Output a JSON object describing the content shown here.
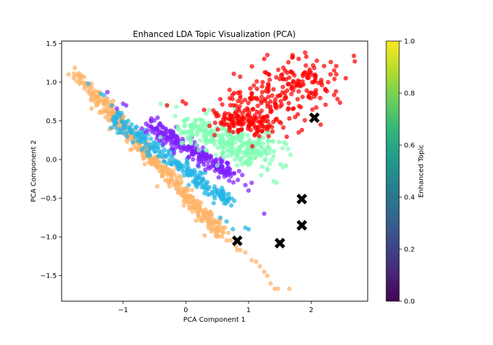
{
  "chart_data": {
    "type": "scatter",
    "title": "Enhanced LDA Topic Visualization (PCA)",
    "xlabel": "PCA Component 1",
    "ylabel": "PCA Component 2",
    "xlim": [
      -1.98,
      2.9
    ],
    "ylim": [
      -1.83,
      1.53
    ],
    "xticks": [
      -1,
      0,
      1,
      2
    ],
    "xtick_labels": [
      "−1",
      "0",
      "1",
      "2"
    ],
    "yticks": [
      -1.5,
      -1.0,
      -0.5,
      0.0,
      0.5,
      1.0,
      1.5
    ],
    "ytick_labels": [
      "−1.5",
      "−1.0",
      "−0.5",
      "0.0",
      "0.5",
      "1.0",
      "1.5"
    ],
    "grid": false,
    "colorbar": {
      "label": "Enhanced Topic",
      "range": [
        0.0,
        1.0
      ],
      "ticks": [
        0.0,
        0.2,
        0.4,
        0.6,
        0.8,
        1.0
      ],
      "tick_labels": [
        "0.0",
        "0.2",
        "0.4",
        "0.6",
        "0.8",
        "1.0"
      ],
      "colormap": "viridis",
      "colormap_stops": [
        "#440154",
        "#482878",
        "#3e4989",
        "#31688e",
        "#26828e",
        "#1f9e89",
        "#35b779",
        "#6ece58",
        "#b5de2b",
        "#fde725"
      ]
    },
    "series": [
      {
        "color": "#ffb366",
        "clusters": [
          {
            "from": [
              -1.75,
              1.1
            ],
            "to": [
              0.55,
              -0.95
            ],
            "count": 400,
            "spread": [
              0.06,
              0.05
            ]
          },
          {
            "from": [
              -1.0,
              0.35
            ],
            "to": [
              0.85,
              -1.15
            ],
            "count": 40,
            "spread": [
              0.05,
              0.04
            ]
          }
        ],
        "points": [
          [
            -1.78,
            1.11
          ],
          [
            -1.62,
            0.99
          ],
          [
            -1.58,
            0.98
          ],
          [
            1.05,
            -1.3
          ],
          [
            1.12,
            -1.32
          ],
          [
            1.18,
            -1.38
          ],
          [
            1.25,
            -1.45
          ],
          [
            1.3,
            -1.5
          ],
          [
            1.35,
            -1.6
          ],
          [
            1.42,
            -1.67
          ],
          [
            1.47,
            -1.67
          ],
          [
            1.65,
            -1.67
          ],
          [
            0.95,
            -1.2
          ],
          [
            0.8,
            -1.12
          ]
        ]
      },
      {
        "color": "#22b4e6",
        "clusters": [
          {
            "from": [
              -1.15,
              0.55
            ],
            "to": [
              0.75,
              -0.6
            ],
            "count": 240,
            "spread": [
              0.06,
              0.05
            ]
          }
        ],
        "points": [
          [
            -1.55,
            0.98
          ],
          [
            -1.35,
            0.85
          ],
          [
            -1.3,
            0.83
          ],
          [
            -1.18,
            0.7
          ],
          [
            0.75,
            -0.9
          ],
          [
            1.0,
            -0.9
          ],
          [
            0.95,
            -0.88
          ],
          [
            0.55,
            -0.75
          ],
          [
            0.65,
            -0.8
          ]
        ]
      },
      {
        "color": "#8020ff",
        "clusters": [
          {
            "from": [
              -0.55,
              0.45
            ],
            "to": [
              0.75,
              -0.2
            ],
            "count": 240,
            "spread": [
              0.07,
              0.06
            ]
          }
        ],
        "points": [
          [
            -1.25,
            0.87
          ],
          [
            -1.0,
            0.72
          ],
          [
            -0.95,
            0.7
          ],
          [
            -1.1,
            0.66
          ],
          [
            -0.55,
            0.53
          ],
          [
            -0.7,
            0.4
          ],
          [
            1.05,
            -0.3
          ],
          [
            1.0,
            -0.4
          ],
          [
            0.9,
            -0.2
          ],
          [
            0.85,
            -0.15
          ],
          [
            1.25,
            -0.7
          ],
          [
            0.95,
            -0.33
          ]
        ]
      },
      {
        "color": "#80ffb4",
        "clusters": [
          {
            "from": [
              0.0,
              0.42
            ],
            "to": [
              1.35,
              0.05
            ],
            "count": 300,
            "spread": [
              0.18,
              0.1
            ]
          }
        ],
        "points": [
          [
            -0.4,
            0.72
          ],
          [
            -0.3,
            0.7
          ],
          [
            -0.15,
            0.68
          ],
          [
            1.6,
            -0.08
          ],
          [
            1.55,
            -0.1
          ],
          [
            1.4,
            -0.28
          ],
          [
            1.45,
            -0.3
          ],
          [
            1.3,
            -0.12
          ],
          [
            1.2,
            0.05
          ],
          [
            1.1,
            0.02
          ]
        ]
      },
      {
        "color": "#ff0000",
        "clusters": [
          {
            "from": [
              1.0,
              0.5
            ],
            "to": [
              1.6,
              0.95
            ],
            "count": 170,
            "spread": [
              0.32,
              0.18
            ]
          },
          {
            "from": [
              0.55,
              0.5
            ],
            "to": [
              1.25,
              0.45
            ],
            "count": 90,
            "spread": [
              0.15,
              0.06
            ]
          },
          {
            "from": [
              1.6,
              1.05
            ],
            "to": [
              2.3,
              1.05
            ],
            "count": 80,
            "spread": [
              0.22,
              0.15
            ]
          }
        ],
        "points": [
          [
            1.25,
            1.3
          ],
          [
            1.3,
            1.35
          ],
          [
            1.7,
            1.35
          ],
          [
            1.8,
            1.3
          ],
          [
            2.68,
            1.34
          ],
          [
            2.4,
            1.1
          ],
          [
            2.55,
            1.05
          ],
          [
            1.85,
            0.38
          ],
          [
            1.8,
            0.35
          ],
          [
            2.15,
            0.45
          ],
          [
            -0.3,
            0.7
          ],
          [
            -0.05,
            0.75
          ],
          [
            0.0,
            0.72
          ],
          [
            0.55,
            0.78
          ],
          [
            0.7,
            0.79
          ],
          [
            1.32,
            0.3
          ]
        ]
      }
    ],
    "centroids": {
      "marker": "X",
      "color": "#000000",
      "points": [
        [
          2.05,
          0.54
        ],
        [
          1.85,
          -0.51
        ],
        [
          1.85,
          -0.85
        ],
        [
          1.5,
          -1.08
        ],
        [
          0.82,
          -1.05
        ]
      ]
    }
  }
}
